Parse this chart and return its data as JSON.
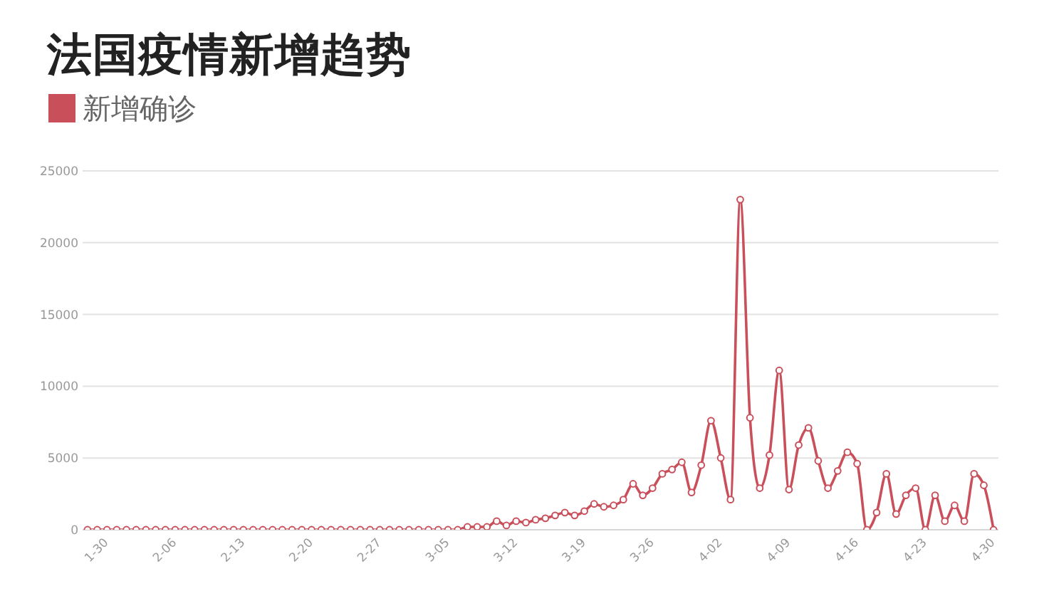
{
  "chart_data": {
    "type": "line",
    "title": "法国疫情新增趋势",
    "categories": [
      null,
      null,
      "1-30",
      null,
      null,
      null,
      null,
      null,
      null,
      "2-06",
      null,
      null,
      null,
      null,
      null,
      null,
      "2-13",
      null,
      null,
      null,
      null,
      null,
      null,
      "2-20",
      null,
      null,
      null,
      null,
      null,
      null,
      "2-27",
      null,
      null,
      null,
      null,
      null,
      null,
      "3-05",
      null,
      null,
      null,
      null,
      null,
      null,
      "3-12",
      null,
      null,
      null,
      null,
      null,
      null,
      "3-19",
      null,
      null,
      null,
      null,
      null,
      null,
      "3-26",
      null,
      null,
      null,
      null,
      null,
      null,
      "4-02",
      null,
      null,
      null,
      null,
      null,
      null,
      "4-09",
      null,
      null,
      null,
      null,
      null,
      null,
      "4-16",
      null,
      null,
      null,
      null,
      null,
      null,
      "4-23",
      null,
      null,
      null,
      null,
      null,
      null,
      "4-30"
    ],
    "series": [
      {
        "name": "新增确诊",
        "color": "#c9505b",
        "values": [
          0,
          0,
          0,
          0,
          0,
          0,
          0,
          0,
          0,
          0,
          0,
          0,
          0,
          0,
          0,
          0,
          0,
          0,
          0,
          0,
          0,
          0,
          0,
          0,
          0,
          0,
          0,
          0,
          0,
          0,
          0,
          0,
          0,
          0,
          0,
          0,
          0,
          0,
          0,
          200,
          200,
          200,
          600,
          300,
          600,
          500,
          700,
          800,
          1000,
          1200,
          1000,
          1300,
          1800,
          1600,
          1700,
          2100,
          3200,
          2400,
          2900,
          3900,
          4200,
          4700,
          2600,
          4500,
          7600,
          5000,
          2100,
          23000,
          7800,
          2900,
          5200,
          11100,
          2800,
          5900,
          7100,
          4800,
          2900,
          4100,
          5400,
          4600,
          0,
          1200,
          3900,
          1100,
          2400,
          2900,
          0,
          2400,
          600,
          1700,
          600,
          3900,
          3100,
          0
        ]
      }
    ],
    "ylim": [
      0,
      25000
    ],
    "yticks": [
      0,
      5000,
      10000,
      15000,
      20000,
      25000
    ],
    "grid": "y",
    "legend": "top left",
    "marker": "circle",
    "line_style": "solid"
  }
}
